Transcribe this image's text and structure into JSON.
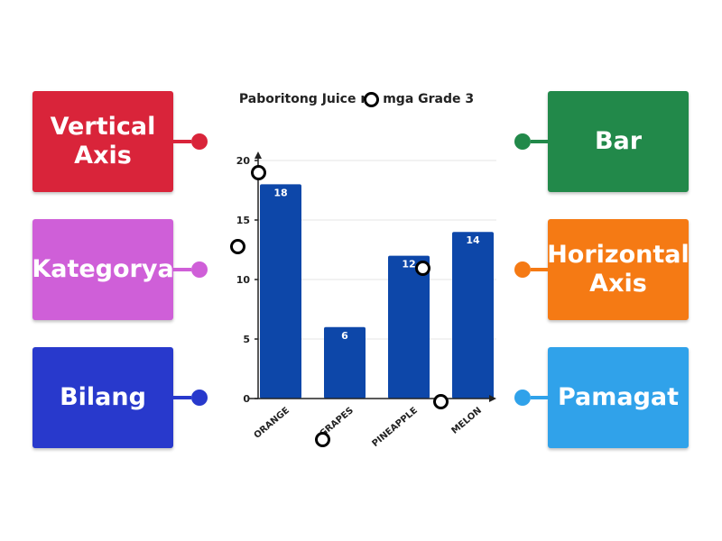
{
  "left_cards": [
    {
      "label": "Vertical\nAxis",
      "color": "#d9243a"
    },
    {
      "label": "Kategorya",
      "color": "#cf5fd8"
    },
    {
      "label": "Bilang",
      "color": "#2839cc"
    }
  ],
  "right_cards": [
    {
      "label": "Bar",
      "color": "#22894a"
    },
    {
      "label": "Horizontal\nAxis",
      "color": "#f57a14"
    },
    {
      "label": "Pamagat",
      "color": "#30a2ea"
    }
  ],
  "chart_data": {
    "type": "bar",
    "title": "Paboritong Juice ng mga Grade 3",
    "categories": [
      "ORANGE",
      "GRAPES",
      "PINEAPPLE",
      "MELON"
    ],
    "values": [
      18,
      6,
      12,
      14
    ],
    "y_ticks": [
      0,
      5,
      10,
      15,
      20
    ],
    "ylim": [
      0,
      20
    ],
    "bar_color": "#0d47a9",
    "grid": true
  }
}
